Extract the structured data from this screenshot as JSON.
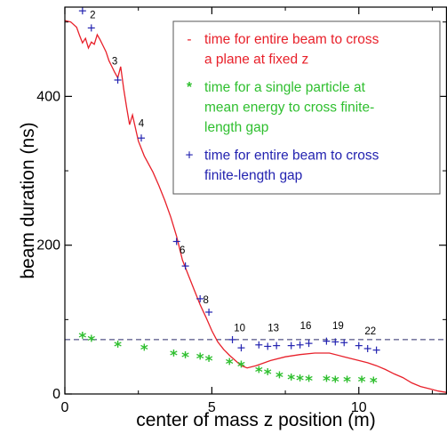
{
  "chart_data": {
    "type": "line",
    "xlabel": "center of mass z position (m)",
    "ylabel": "beam duration (ns)",
    "xlim": [
      0,
      13
    ],
    "ylim": [
      0,
      520
    ],
    "xticks": [
      0,
      5,
      10
    ],
    "yticks": [
      0,
      200,
      400
    ],
    "xtick_labels": [
      "0",
      "5",
      "10"
    ],
    "ytick_labels": [
      "0",
      "200",
      "400"
    ],
    "grid": false,
    "legend": {
      "placement": "top-right",
      "entries": [
        {
          "marker": "-",
          "color": "#e8202a",
          "lines": [
            "time for entire beam to cross",
            "a plane at fixed z"
          ]
        },
        {
          "marker": "*",
          "color": "#2fbf2f",
          "lines": [
            "time for a single particle at",
            "mean energy to cross finite-",
            "length gap"
          ]
        },
        {
          "marker": "+",
          "color": "#2323b0",
          "lines": [
            "time for entire beam to cross",
            "finite-length gap"
          ]
        }
      ]
    },
    "series": [
      {
        "style": "line",
        "color": "#e8202a",
        "x": [
          0,
          0.2,
          0.4,
          0.5,
          0.6,
          0.7,
          0.8,
          0.9,
          1.0,
          1.1,
          1.2,
          1.3,
          1.4,
          1.5,
          1.6,
          1.7,
          1.8,
          1.9,
          2.0,
          2.1,
          2.2,
          2.3,
          2.5,
          2.7,
          3.0,
          3.2,
          3.4,
          3.6,
          3.8,
          4.0,
          4.2,
          4.4,
          4.6,
          4.8,
          5.0,
          5.2,
          5.4,
          5.6,
          5.8,
          6.0,
          6.2,
          6.5,
          7.0,
          7.5,
          8.0,
          8.5,
          9.0,
          9.5,
          10.0,
          10.3,
          10.6,
          10.9,
          11.2,
          11.5,
          11.8,
          12.1,
          12.4,
          12.7,
          13.0
        ],
        "y": [
          502,
          500,
          493,
          482,
          472,
          478,
          465,
          473,
          470,
          483,
          476,
          468,
          460,
          448,
          440,
          432,
          425,
          440,
          410,
          385,
          362,
          375,
          340,
          320,
          298,
          280,
          260,
          238,
          212,
          180,
          160,
          140,
          120,
          103,
          85,
          70,
          60,
          52,
          45,
          38,
          35,
          38,
          45,
          50,
          53,
          55,
          55,
          50,
          45,
          42,
          38,
          33,
          27,
          22,
          15,
          10,
          7,
          4,
          2
        ]
      },
      {
        "style": "star",
        "color": "#2fbf2f",
        "x": [
          0.6,
          0.9,
          1.8,
          2.7,
          3.7,
          4.1,
          4.6,
          4.9,
          5.6,
          6.0,
          6.6,
          6.9,
          7.3,
          7.7,
          8.0,
          8.3,
          8.9,
          9.2,
          9.6,
          10.1,
          10.5
        ],
        "y": [
          77,
          73,
          65,
          61,
          53,
          51,
          49,
          46,
          42,
          38,
          31,
          28,
          24,
          21,
          20,
          19,
          19,
          18,
          18,
          18,
          17
        ]
      },
      {
        "style": "plus",
        "color": "#2323b0",
        "x": [
          0.6,
          0.9,
          1.8,
          2.6,
          3.8,
          4.1,
          4.6,
          4.9,
          5.7,
          6.0,
          6.6,
          6.9,
          7.2,
          7.7,
          8.0,
          8.3,
          8.9,
          9.2,
          9.5,
          10.0,
          10.3,
          10.6
        ],
        "y": [
          515,
          492,
          422,
          344,
          205,
          172,
          128,
          110,
          73,
          62,
          66,
          64,
          65,
          65,
          66,
          68,
          71,
          70,
          69,
          65,
          61,
          59
        ]
      }
    ],
    "reference_line": {
      "y": 73,
      "style": "dashed",
      "color": "#2a2a6a"
    },
    "point_labels": [
      {
        "text": "2",
        "x": 0.85,
        "y": 505
      },
      {
        "text": "3",
        "x": 1.6,
        "y": 443
      },
      {
        "text": "4",
        "x": 2.5,
        "y": 359
      },
      {
        "text": "6",
        "x": 3.9,
        "y": 189
      },
      {
        "text": "8",
        "x": 4.7,
        "y": 122
      },
      {
        "text": "10",
        "x": 5.75,
        "y": 84
      },
      {
        "text": "13",
        "x": 6.9,
        "y": 84
      },
      {
        "text": "16",
        "x": 8.0,
        "y": 87
      },
      {
        "text": "19",
        "x": 9.1,
        "y": 87
      },
      {
        "text": "22",
        "x": 10.2,
        "y": 80
      }
    ]
  }
}
